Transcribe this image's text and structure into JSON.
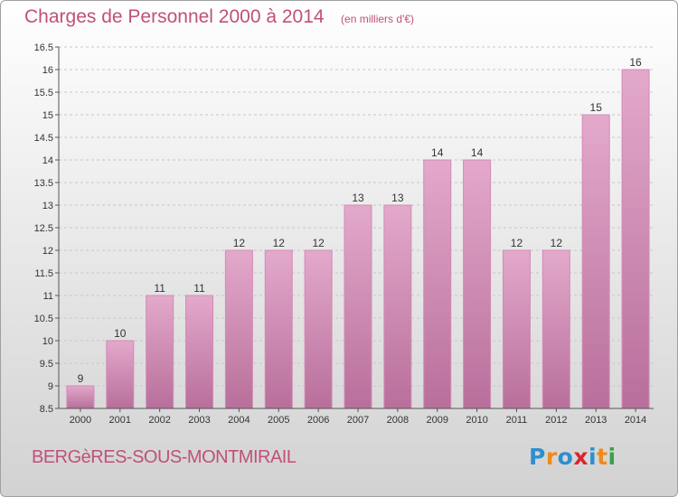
{
  "header": {
    "title": "Charges de Personnel 2000 à 2014",
    "subtitle": "(en milliers d'€)"
  },
  "footer": {
    "town": "BERGèRES-SOUS-MONTMIRAIL",
    "logo_letters": [
      "P",
      "r",
      "o",
      "x",
      "i",
      "t",
      "i"
    ],
    "logo_colors": [
      "#2d8fd0",
      "#f08a1c",
      "#2d8fd0",
      "#d9262b",
      "#2d8fd0",
      "#f08a1c",
      "#3aa14a"
    ]
  },
  "colors": {
    "bar_top": "#e3a9cb",
    "bar_bottom": "#b86f9b",
    "bar_edge": "#d48ab5"
  },
  "chart_data": {
    "type": "bar",
    "title": "Charges de Personnel 2000 à 2014",
    "categories": [
      "2000",
      "2001",
      "2002",
      "2003",
      "2004",
      "2005",
      "2006",
      "2007",
      "2008",
      "2009",
      "2010",
      "2011",
      "2012",
      "2013",
      "2014"
    ],
    "values": [
      9,
      10,
      11,
      11,
      12,
      12,
      12,
      13,
      13,
      14,
      14,
      12,
      12,
      15,
      16
    ],
    "ylim": [
      8.5,
      16.5
    ],
    "yticks": [
      "8.5",
      "9",
      "9.5",
      "10",
      "10.5",
      "11",
      "11.5",
      "12",
      "12.5",
      "13",
      "13.5",
      "14",
      "14.5",
      "15",
      "15.5",
      "16",
      "16.5"
    ],
    "grid": "horizontal-dashed"
  }
}
